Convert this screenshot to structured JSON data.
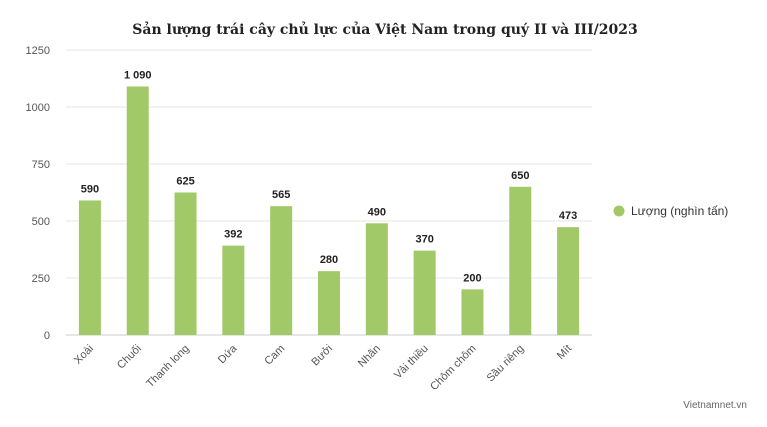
{
  "chart_data": {
    "type": "bar",
    "title": "Sản lượng trái cây chủ lực của Việt Nam trong quý II và III/2023",
    "categories": [
      "Xoài",
      "Chuối",
      "Thanh long",
      "Dứa",
      "Cam",
      "Bưởi",
      "Nhãn",
      "Vải thiều",
      "Chôm chôm",
      "Sầu riêng",
      "Mít"
    ],
    "series": [
      {
        "name": "Lượng (nghìn tấn)",
        "values": [
          590,
          1090,
          625,
          392,
          565,
          280,
          490,
          370,
          200,
          650,
          473
        ],
        "labels": [
          "590",
          "1 090",
          "625",
          "392",
          "565",
          "280",
          "490",
          "370",
          "200",
          "650",
          "473"
        ],
        "color": "#a1c967"
      }
    ],
    "ylim": [
      0,
      1250
    ],
    "yticks": [
      0,
      250,
      500,
      750,
      1000,
      1250
    ],
    "grid": true,
    "legend_position": "right"
  },
  "source": "Vietnamnet.vn"
}
